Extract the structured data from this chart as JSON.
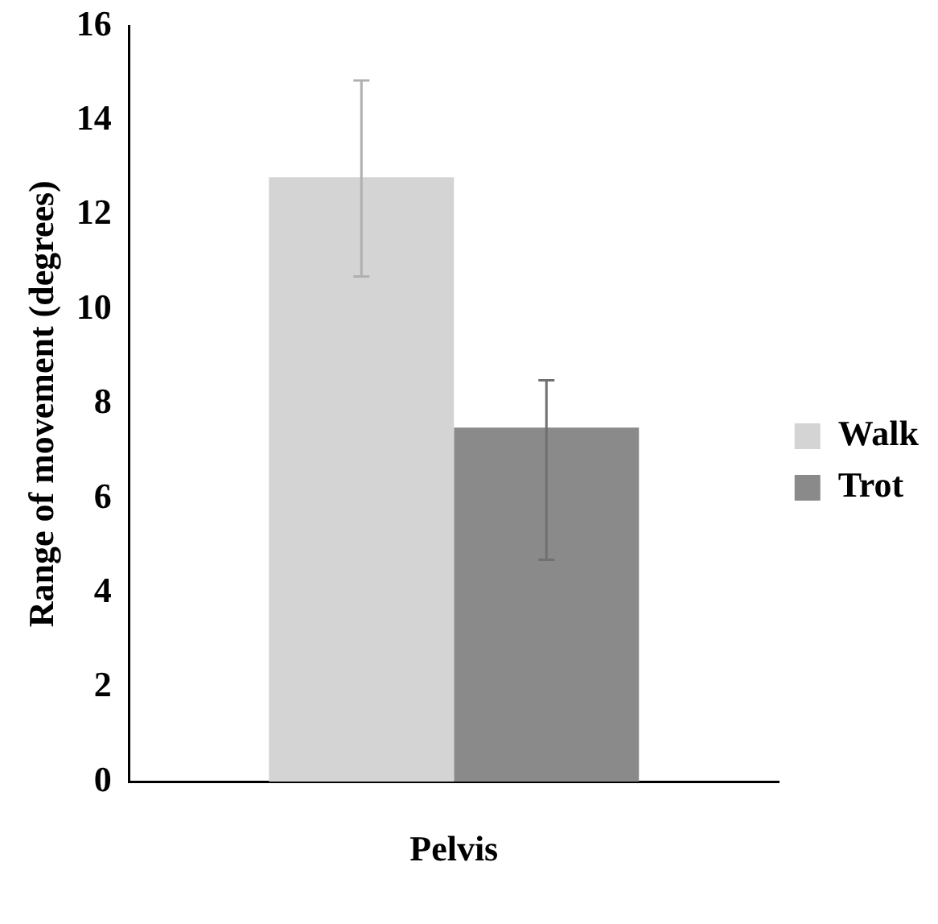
{
  "chart_data": {
    "type": "bar",
    "ylabel": "Range of movement (degrees)",
    "categories": [
      "Pelvis"
    ],
    "series": [
      {
        "name": "Walk",
        "color": "#d4d4d4",
        "values": [
          12.8
        ],
        "errors": [
          [
            10.7,
            14.85
          ]
        ]
      },
      {
        "name": "Trot",
        "color": "#8a8a8a",
        "values": [
          7.5
        ],
        "errors": [
          [
            4.7,
            8.5
          ]
        ]
      }
    ],
    "ylim": [
      0,
      16
    ],
    "yticks": [
      0,
      2,
      4,
      6,
      8,
      10,
      12,
      14,
      16
    ],
    "grid": false,
    "legend": "right"
  }
}
